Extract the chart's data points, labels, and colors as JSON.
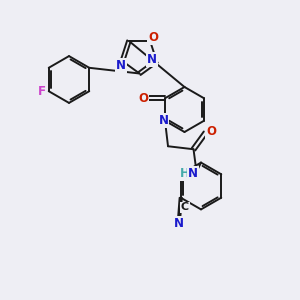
{
  "bg_color": "#eeeef4",
  "bond_color": "#1a1a1a",
  "bond_width": 1.4,
  "atom_colors": {
    "C": "#1a1a1a",
    "N": "#1a1acc",
    "O": "#cc2000",
    "F": "#cc44cc",
    "H": "#44aaaa"
  },
  "fs": 8.5
}
